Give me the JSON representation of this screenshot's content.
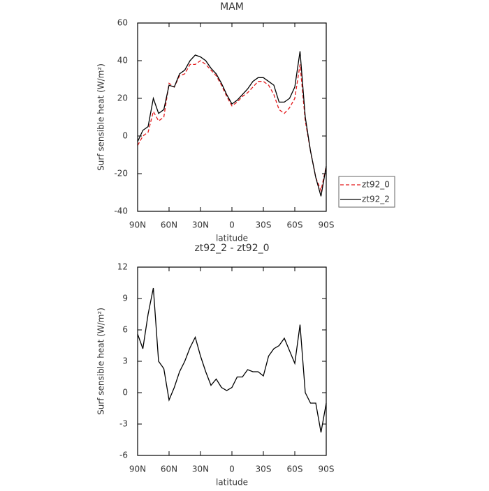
{
  "chart_data": [
    {
      "type": "line",
      "title": "MAM",
      "xlabel": "latitude",
      "ylabel": "Surf sensible heat (W/m²)",
      "x": [
        90,
        85,
        80,
        75,
        70,
        65,
        60,
        55,
        50,
        45,
        40,
        35,
        30,
        25,
        20,
        15,
        10,
        5,
        0,
        -5,
        -10,
        -15,
        -20,
        -25,
        -30,
        -35,
        -40,
        -45,
        -50,
        -55,
        -60,
        -65,
        -70,
        -75,
        -80,
        -85,
        -90
      ],
      "series": [
        {
          "name": "zt92_0",
          "color": "#e41a1c",
          "dash": true,
          "values": [
            -5,
            0,
            2,
            13,
            8,
            10,
            28,
            26,
            32,
            33,
            38,
            38,
            40,
            38,
            35,
            32,
            27,
            21,
            16,
            18,
            21,
            23,
            26,
            29,
            29,
            27,
            22,
            14,
            12,
            15,
            20,
            38,
            8,
            -8,
            -22,
            -29,
            -16
          ]
        },
        {
          "name": "zt92_2",
          "color": "#000000",
          "dash": false,
          "values": [
            -3,
            3,
            5,
            20,
            12,
            14,
            27,
            26,
            33,
            35,
            40,
            43,
            42,
            40,
            36,
            33,
            28,
            22,
            17,
            19,
            22,
            25,
            29,
            31,
            31,
            29,
            27,
            18,
            18,
            20,
            26,
            45,
            10,
            -8,
            -22,
            -32,
            -16
          ]
        }
      ],
      "xlim": [
        90,
        -90
      ],
      "xticks": [
        {
          "value": 90,
          "label": "90N"
        },
        {
          "value": 60,
          "label": "60N"
        },
        {
          "value": 30,
          "label": "30N"
        },
        0,
        {
          "value": -30,
          "label": "30S"
        },
        {
          "value": -60,
          "label": "60S"
        },
        {
          "value": -90,
          "label": "90S"
        }
      ],
      "ylim": [
        -40,
        60
      ],
      "yticks": [
        -40,
        -20,
        0,
        20,
        40,
        60
      ],
      "legend": "right"
    },
    {
      "type": "line",
      "title": "zt92_2 - zt92_0",
      "xlabel": "latitude",
      "ylabel": "Surf sensible heat (W/m²)",
      "x": [
        90,
        85,
        80,
        75,
        70,
        65,
        60,
        55,
        50,
        45,
        40,
        35,
        30,
        25,
        20,
        15,
        10,
        5,
        0,
        -5,
        -10,
        -15,
        -20,
        -25,
        -30,
        -35,
        -40,
        -45,
        -50,
        -55,
        -60,
        -65,
        -70,
        -75,
        -80,
        -85,
        -90
      ],
      "color": "#000000",
      "values": [
        5.6,
        4.2,
        7.5,
        10,
        3,
        2.3,
        -0.7,
        0.5,
        2,
        3,
        4.3,
        5.3,
        3.5,
        2,
        0.7,
        1.3,
        0.5,
        0.2,
        0.5,
        1.5,
        1.5,
        2.2,
        2,
        2,
        1.6,
        3.5,
        4.2,
        4.5,
        5.2,
        4,
        2.8,
        6.5,
        0,
        -1,
        -1,
        -3.8,
        -1
      ],
      "xlim": [
        90,
        -90
      ],
      "xticks": [
        {
          "value": 90,
          "label": "90N"
        },
        {
          "value": 60,
          "label": "60N"
        },
        {
          "value": 30,
          "label": "30N"
        },
        0,
        {
          "value": -30,
          "label": "30S"
        },
        {
          "value": -60,
          "label": "60S"
        },
        {
          "value": -90,
          "label": "90S"
        }
      ],
      "ylim": [
        -6,
        12
      ],
      "yticks": [
        -6,
        -3,
        0,
        3,
        6,
        9,
        12
      ]
    }
  ]
}
